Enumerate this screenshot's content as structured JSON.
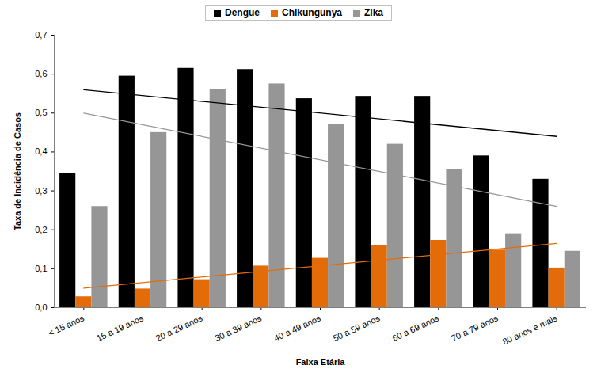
{
  "chart_data": {
    "type": "bar",
    "x_label": "Faixa Etária",
    "y_label": "Taxa de Incidência de Casos",
    "categories": [
      "< 15 anos",
      "15 a 19 anos",
      "20 a 29 anos",
      "30 a 39 anos",
      "40 a 49 anos",
      "50 a 59 anos",
      "60 a 69 anos",
      "70 a 79 anos",
      "80 anos e mais"
    ],
    "series": [
      {
        "name": "Dengue",
        "color": "#000000",
        "values": [
          0.345,
          0.595,
          0.615,
          0.612,
          0.537,
          0.543,
          0.543,
          0.39,
          0.33
        ],
        "trend": [
          0.56,
          0.44
        ]
      },
      {
        "name": "Chikungunya",
        "color": "#e36c09",
        "values": [
          0.028,
          0.048,
          0.072,
          0.107,
          0.127,
          0.16,
          0.173,
          0.148,
          0.102
        ],
        "trend": [
          0.05,
          0.165
        ]
      },
      {
        "name": "Zika",
        "color": "#969696",
        "values": [
          0.26,
          0.45,
          0.56,
          0.575,
          0.47,
          0.42,
          0.356,
          0.19,
          0.145
        ],
        "trend": [
          0.5,
          0.26
        ]
      }
    ],
    "ylim": [
      0,
      0.7
    ],
    "yticks": [
      {
        "value": 0,
        "label": "0,0"
      },
      {
        "value": 0.1,
        "label": "0,1"
      },
      {
        "value": 0.2,
        "label": "0,2"
      },
      {
        "value": 0.3,
        "label": "0,3"
      },
      {
        "value": 0.4,
        "label": "0,4"
      },
      {
        "value": 0.5,
        "label": "0,5"
      },
      {
        "value": 0.6,
        "label": "0,6"
      },
      {
        "value": 0.7,
        "label": "0,7"
      }
    ],
    "legend": "top"
  }
}
